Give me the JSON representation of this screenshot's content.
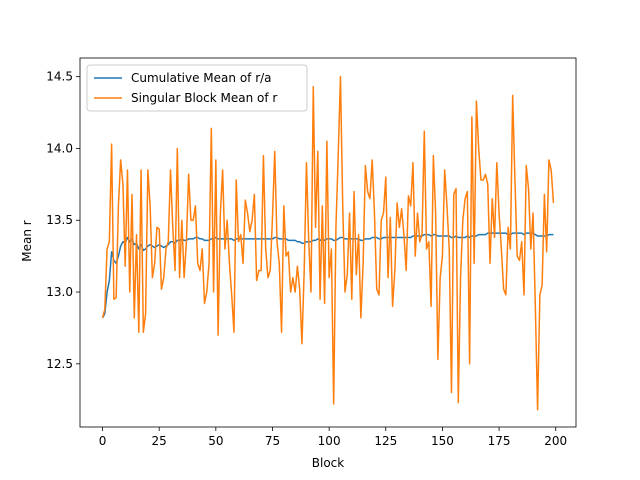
{
  "chart_data": {
    "type": "line",
    "xlabel": "Block",
    "ylabel": "Mean r",
    "x": [
      0,
      1,
      2,
      3,
      4,
      5,
      6,
      7,
      8,
      9,
      10,
      11,
      12,
      13,
      14,
      15,
      16,
      17,
      18,
      19,
      20,
      21,
      22,
      23,
      24,
      25,
      26,
      27,
      28,
      29,
      30,
      31,
      32,
      33,
      34,
      35,
      36,
      37,
      38,
      39,
      40,
      41,
      42,
      43,
      44,
      45,
      46,
      47,
      48,
      49,
      50,
      51,
      52,
      53,
      54,
      55,
      56,
      57,
      58,
      59,
      60,
      61,
      62,
      63,
      64,
      65,
      66,
      67,
      68,
      69,
      70,
      71,
      72,
      73,
      74,
      75,
      76,
      77,
      78,
      79,
      80,
      81,
      82,
      83,
      84,
      85,
      86,
      87,
      88,
      89,
      90,
      91,
      92,
      93,
      94,
      95,
      96,
      97,
      98,
      99,
      100,
      101,
      102,
      103,
      104,
      105,
      106,
      107,
      108,
      109,
      110,
      111,
      112,
      113,
      114,
      115,
      116,
      117,
      118,
      119,
      120,
      121,
      122,
      123,
      124,
      125,
      126,
      127,
      128,
      129,
      130,
      131,
      132,
      133,
      134,
      135,
      136,
      137,
      138,
      139,
      140,
      141,
      142,
      143,
      144,
      145,
      146,
      147,
      148,
      149,
      150,
      151,
      152,
      153,
      154,
      155,
      156,
      157,
      158,
      159,
      160,
      161,
      162,
      163,
      164,
      165,
      166,
      167,
      168,
      169,
      170,
      171,
      172,
      173,
      174,
      175,
      176,
      177,
      178,
      179,
      180,
      181,
      182,
      183,
      184,
      185,
      186,
      187,
      188,
      189,
      190,
      191,
      192,
      193,
      194,
      195,
      196,
      197,
      198,
      199
    ],
    "series": [
      {
        "name": "Cumulative Mean of r/a",
        "color": "#1f77b4",
        "values": [
          12.82,
          12.85,
          13.0,
          13.08,
          13.28,
          13.22,
          13.2,
          13.25,
          13.32,
          13.35,
          13.34,
          13.38,
          13.35,
          13.37,
          13.33,
          13.34,
          13.3,
          13.33,
          13.29,
          13.3,
          13.32,
          13.33,
          13.32,
          13.31,
          13.32,
          13.33,
          13.32,
          13.31,
          13.32,
          13.33,
          13.35,
          13.35,
          13.34,
          13.36,
          13.36,
          13.37,
          13.36,
          13.36,
          13.37,
          13.37,
          13.37,
          13.38,
          13.38,
          13.37,
          13.37,
          13.36,
          13.36,
          13.36,
          13.37,
          13.37,
          13.38,
          13.37,
          13.37,
          13.37,
          13.37,
          13.37,
          13.37,
          13.37,
          13.36,
          13.37,
          13.37,
          13.37,
          13.37,
          13.37,
          13.37,
          13.37,
          13.37,
          13.37,
          13.37,
          13.37,
          13.37,
          13.37,
          13.37,
          13.37,
          13.37,
          13.37,
          13.38,
          13.38,
          13.37,
          13.37,
          13.37,
          13.37,
          13.36,
          13.36,
          13.36,
          13.36,
          13.35,
          13.35,
          13.34,
          13.34,
          13.35,
          13.35,
          13.35,
          13.36,
          13.36,
          13.37,
          13.36,
          13.37,
          13.36,
          13.37,
          13.37,
          13.37,
          13.36,
          13.36,
          13.37,
          13.38,
          13.38,
          13.37,
          13.37,
          13.37,
          13.37,
          13.37,
          13.37,
          13.37,
          13.36,
          13.36,
          13.37,
          13.37,
          13.37,
          13.38,
          13.38,
          13.38,
          13.37,
          13.37,
          13.38,
          13.38,
          13.38,
          13.38,
          13.38,
          13.38,
          13.38,
          13.38,
          13.38,
          13.38,
          13.38,
          13.38,
          13.38,
          13.39,
          13.39,
          13.39,
          13.39,
          13.39,
          13.4,
          13.4,
          13.4,
          13.39,
          13.4,
          13.4,
          13.39,
          13.39,
          13.39,
          13.39,
          13.39,
          13.39,
          13.38,
          13.38,
          13.39,
          13.38,
          13.38,
          13.38,
          13.38,
          13.39,
          13.38,
          13.39,
          13.39,
          13.39,
          13.4,
          13.4,
          13.4,
          13.4,
          13.41,
          13.41,
          13.41,
          13.41,
          13.41,
          13.41,
          13.41,
          13.41,
          13.41,
          13.4,
          13.4,
          13.41,
          13.41,
          13.41,
          13.41,
          13.41,
          13.4,
          13.41,
          13.41,
          13.41,
          13.41,
          13.4,
          13.39,
          13.39,
          13.39,
          13.39,
          13.39,
          13.4,
          13.4,
          13.4
        ]
      },
      {
        "name": "Singular Block Mean of r",
        "color": "#ff7f0e",
        "values": [
          12.82,
          12.88,
          13.3,
          13.35,
          14.03,
          12.95,
          12.96,
          13.6,
          13.92,
          13.75,
          13.18,
          13.85,
          13.0,
          13.68,
          12.82,
          13.4,
          12.72,
          13.85,
          12.72,
          12.85,
          13.85,
          13.6,
          13.1,
          13.2,
          13.45,
          13.44,
          13.02,
          13.1,
          13.3,
          13.35,
          13.85,
          13.45,
          13.15,
          14.0,
          13.1,
          13.5,
          13.1,
          13.35,
          13.82,
          13.5,
          13.5,
          13.6,
          13.2,
          13.15,
          13.3,
          12.92,
          13.0,
          13.2,
          14.14,
          13.0,
          13.92,
          12.7,
          13.55,
          13.85,
          13.3,
          13.5,
          13.2,
          12.98,
          12.72,
          13.78,
          13.35,
          13.4,
          13.2,
          13.64,
          13.55,
          13.42,
          13.5,
          13.68,
          13.08,
          13.15,
          13.15,
          13.95,
          13.3,
          13.1,
          13.15,
          13.52,
          13.98,
          13.35,
          13.2,
          12.72,
          13.6,
          13.25,
          13.28,
          13.0,
          13.1,
          13.0,
          13.18,
          13.02,
          12.64,
          13.15,
          13.9,
          13.35,
          13.0,
          14.43,
          13.45,
          13.98,
          12.95,
          13.6,
          12.92,
          14.05,
          13.1,
          13.3,
          12.22,
          13.45,
          13.95,
          14.5,
          13.6,
          13.0,
          13.12,
          13.55,
          12.95,
          13.7,
          13.12,
          13.4,
          12.82,
          13.2,
          13.88,
          13.7,
          13.65,
          13.92,
          13.55,
          13.02,
          12.98,
          13.5,
          13.55,
          13.8,
          13.1,
          13.52,
          12.9,
          13.15,
          13.62,
          13.45,
          13.58,
          13.4,
          13.15,
          13.67,
          13.6,
          13.9,
          13.25,
          13.55,
          13.35,
          13.4,
          14.12,
          13.3,
          13.35,
          12.9,
          13.95,
          13.55,
          12.53,
          13.1,
          13.25,
          13.85,
          13.6,
          13.3,
          12.3,
          13.68,
          13.72,
          12.23,
          13.1,
          13.5,
          13.65,
          13.7,
          12.5,
          14.22,
          13.2,
          14.33,
          14.0,
          13.78,
          13.78,
          13.82,
          13.75,
          13.2,
          13.65,
          13.38,
          13.9,
          13.55,
          13.3,
          13.02,
          12.98,
          13.45,
          13.3,
          14.37,
          13.78,
          13.25,
          13.22,
          13.35,
          12.98,
          13.88,
          13.72,
          13.3,
          13.55,
          12.9,
          12.18,
          12.98,
          13.05,
          13.68,
          13.28,
          13.92,
          13.85,
          13.62
        ]
      }
    ],
    "xlim": [
      -9.95,
      208.95
    ],
    "ylim": [
      12.06,
      14.63
    ],
    "xticks": [
      0,
      25,
      50,
      75,
      100,
      125,
      150,
      175,
      200
    ],
    "yticks": [
      12.5,
      {
        "value": 13.0,
        "label": "13.0"
      },
      13.5,
      {
        "value": 14.0,
        "label": "14.0"
      },
      14.5
    ],
    "grid": false,
    "legend": "upper left"
  }
}
